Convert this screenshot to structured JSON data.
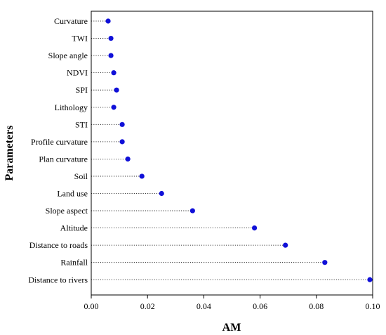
{
  "chart_data": {
    "type": "scatter",
    "style": "dot plot with dotted leader lines",
    "xlabel": "AM",
    "ylabel": "Parameters",
    "xlim": [
      0,
      0.1
    ],
    "xticks": [
      "0.00",
      "0.02",
      "0.04",
      "0.06",
      "0.08",
      "0.10"
    ],
    "grid": false,
    "marker_color": "#1010d8",
    "categories": [
      "Curvature",
      "TWI",
      "Slope angle",
      "NDVI",
      "SPI",
      "Lithology",
      "STI",
      "Profile curvature",
      "Plan curvature",
      "Soil",
      "Land use",
      "Slope aspect",
      "Altitude",
      "Distance to roads",
      "Rainfall",
      "Distance to rivers"
    ],
    "values": [
      0.006,
      0.007,
      0.007,
      0.008,
      0.009,
      0.008,
      0.011,
      0.011,
      0.013,
      0.018,
      0.025,
      0.036,
      0.058,
      0.069,
      0.083,
      0.099
    ]
  }
}
